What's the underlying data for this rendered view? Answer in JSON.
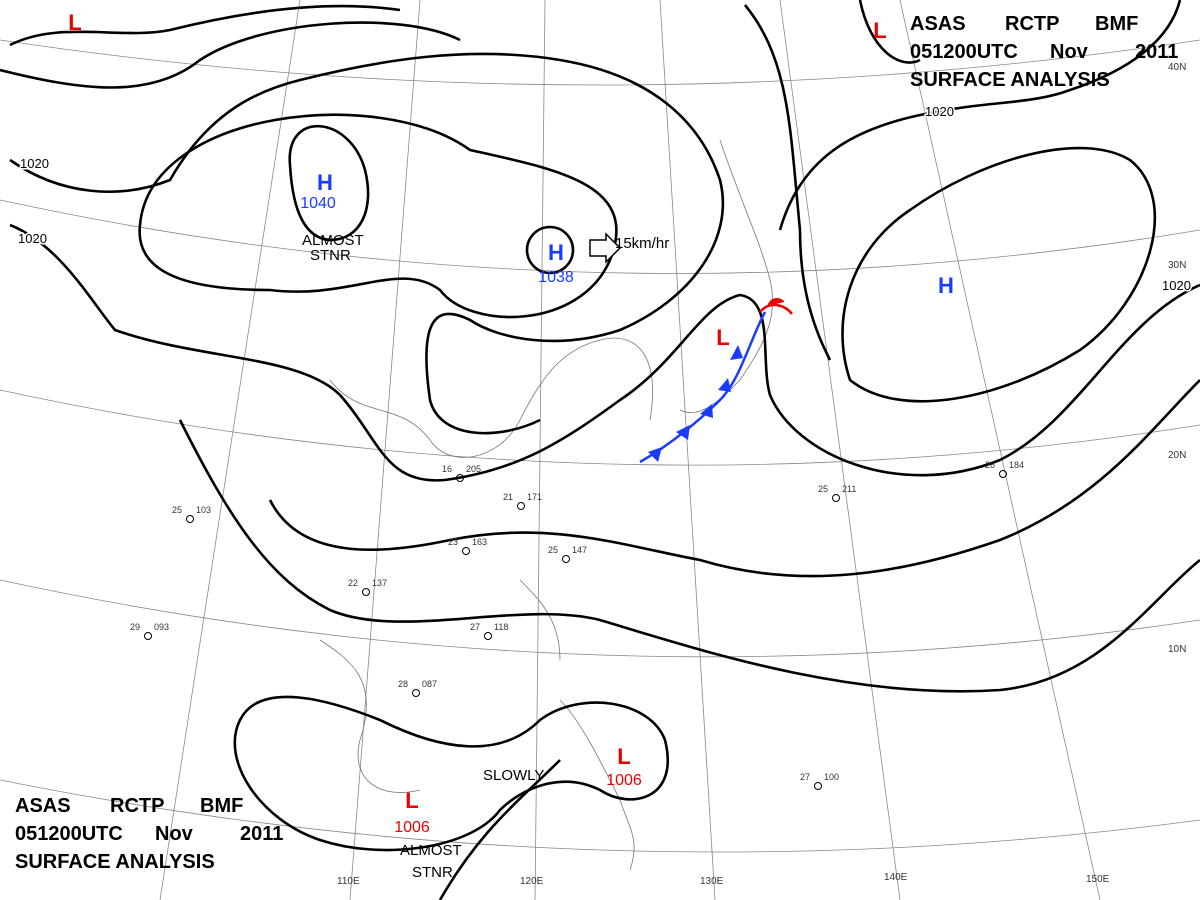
{
  "title_blocks": [
    {
      "lines": [
        "ASAS",
        "RCTP",
        "BMF",
        "051200UTC",
        "Nov",
        "2011",
        "SURFACE  ANALYSIS"
      ]
    },
    {
      "lines": [
        "ASAS",
        "RCTP",
        "BMF",
        "051200UTC",
        "Nov",
        "2011",
        "SURFACE  ANALYSIS"
      ]
    }
  ],
  "centers": [
    {
      "type": "L",
      "pressure": null
    },
    {
      "type": "L",
      "pressure": null
    },
    {
      "type": "H",
      "pressure": "1040"
    },
    {
      "type": "H",
      "pressure": "1038"
    },
    {
      "type": "H",
      "pressure": null
    },
    {
      "type": "L",
      "pressure": null
    },
    {
      "type": "L",
      "pressure": "1006"
    },
    {
      "type": "L",
      "pressure": "1006"
    }
  ],
  "isobar_labels": [
    "1020",
    "1020",
    "1020",
    "1020"
  ],
  "annotations": [
    "ALMOST",
    "STNR",
    "15km/hr",
    "SLOWLY",
    "ALMOST",
    "STNR"
  ],
  "graticule_labels": [
    "110E",
    "120E",
    "130E",
    "140E",
    "150E",
    "10N",
    "20N",
    "30N",
    "40N"
  ],
  "stations": [
    {
      "temp": "25",
      "pressure": "147"
    },
    {
      "temp": "27",
      "pressure": "118"
    },
    {
      "temp": "23",
      "pressure": "163"
    },
    {
      "temp": "16",
      "pressure": "205"
    },
    {
      "temp": "21",
      "pressure": "171"
    },
    {
      "temp": "25",
      "pressure": "103"
    },
    {
      "temp": "27",
      "pressure": "100"
    },
    {
      "temp": "26",
      "pressure": "184"
    },
    {
      "temp": "25",
      "pressure": "211"
    },
    {
      "temp": "28",
      "pressure": "087"
    },
    {
      "temp": "29",
      "pressure": "093"
    },
    {
      "temp": "22",
      "pressure": "137"
    }
  ]
}
